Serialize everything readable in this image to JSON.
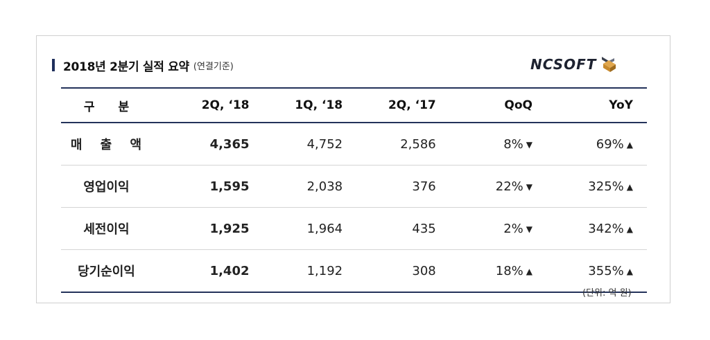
{
  "title": {
    "main": "2018년 2분기 실적 요약",
    "sub": "(연결기준)"
  },
  "logo": {
    "text": "NCSOFT"
  },
  "table": {
    "headers": [
      "구　　분",
      "2Q, ‘18",
      "1Q, ‘18",
      "2Q, ‘17",
      "QoQ",
      "YoY"
    ],
    "rows": [
      {
        "label": "매 출 액",
        "q2_18": "4,365",
        "q1_18": "4,752",
        "q2_17": "2,586",
        "qoq": "8%",
        "qoq_dir": "▼",
        "yoy": "69%",
        "yoy_dir": "▲"
      },
      {
        "label": "영업이익",
        "q2_18": "1,595",
        "q1_18": "2,038",
        "q2_17": "376",
        "qoq": "22%",
        "qoq_dir": "▼",
        "yoy": "325%",
        "yoy_dir": "▲"
      },
      {
        "label": "세전이익",
        "q2_18": "1,925",
        "q1_18": "1,964",
        "q2_17": "435",
        "qoq": "2%",
        "qoq_dir": "▼",
        "yoy": "342%",
        "yoy_dir": "▲"
      },
      {
        "label": "당기순이익",
        "q2_18": "1,402",
        "q1_18": "1,192",
        "q2_17": "308",
        "qoq": "18%",
        "qoq_dir": "▲",
        "yoy": "355%",
        "yoy_dir": "▲"
      }
    ]
  },
  "unit_note": "(단위: 억 원)",
  "colors": {
    "rule": "#23325a",
    "marker": "#1f2f5c"
  }
}
